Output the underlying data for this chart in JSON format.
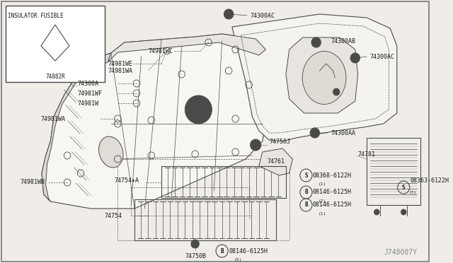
{
  "bg_color": "#f0ede8",
  "line_color": "#4a4a4a",
  "label_color": "#1a1a1a",
  "font_size": 6.0,
  "watermark": "J748007Y",
  "inset_label": "INSULATOR FUSIBLE",
  "inset_part": "74882R",
  "border_color": "#888888",
  "white": "#ffffff",
  "gray_fill": "#e8e4de"
}
